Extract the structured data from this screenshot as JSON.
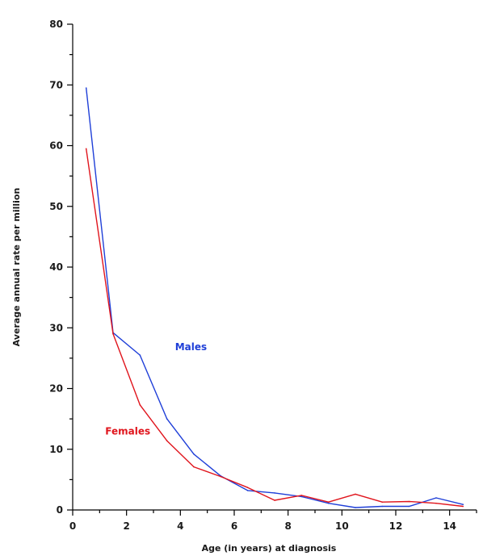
{
  "chart_data": {
    "type": "line",
    "title": "",
    "xlabel": "Age (in years) at diagnosis",
    "ylabel": "Average annual rate per million",
    "xlim": [
      0,
      15
    ],
    "ylim": [
      0,
      80
    ],
    "x_ticks": [
      0,
      2,
      4,
      6,
      8,
      10,
      12,
      14
    ],
    "x_tick_labels": [
      "0",
      "2",
      "4",
      "6",
      "8",
      "10",
      "12",
      "14"
    ],
    "y_ticks": [
      0,
      10,
      20,
      30,
      40,
      50,
      60,
      70,
      80
    ],
    "y_tick_labels": [
      "0",
      "10",
      "20",
      "30",
      "40",
      "50",
      "60",
      "70",
      "80"
    ],
    "grid": false,
    "legend": "inline labels",
    "series": [
      {
        "name": "Males",
        "color": "#1f3fd8",
        "x": [
          0.5,
          1.5,
          2.5,
          3.5,
          4.5,
          5.5,
          6.5,
          7.5,
          8.5,
          9.5,
          10.5,
          11.5,
          12.5,
          13.5,
          14.5
        ],
        "values": [
          69.5,
          29.2,
          25.5,
          15.0,
          9.2,
          5.6,
          3.2,
          2.8,
          2.2,
          1.1,
          0.4,
          0.6,
          0.6,
          2.0,
          0.9
        ]
      },
      {
        "name": "Females",
        "color": "#e0141c",
        "x": [
          0.5,
          1.5,
          2.5,
          3.5,
          4.5,
          5.5,
          6.5,
          7.5,
          8.5,
          9.5,
          10.5,
          11.5,
          12.5,
          13.5,
          14.5
        ],
        "values": [
          59.5,
          29.0,
          17.3,
          11.4,
          7.1,
          5.5,
          3.7,
          1.6,
          2.4,
          1.3,
          2.6,
          1.3,
          1.4,
          1.1,
          0.6
        ]
      }
    ],
    "annotations": [
      {
        "text": "Males",
        "series": "Males",
        "x": 3.5,
        "y": 25.5
      },
      {
        "text": "Females",
        "series": "Females",
        "x": 2.5,
        "y": 11.5
      }
    ]
  }
}
